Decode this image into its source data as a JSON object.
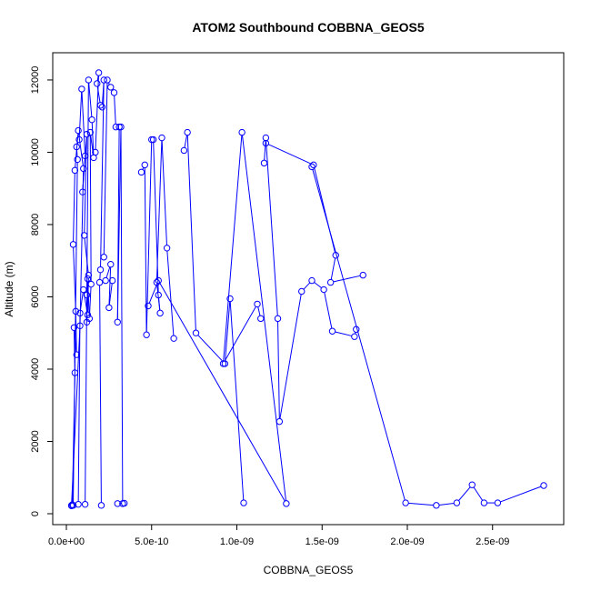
{
  "chart_data": {
    "type": "line",
    "title": "ATOM2 Southbound COBBNA_GEOS5",
    "xlabel": "COBBNA_GEOS5",
    "ylabel": "Altitude (m)",
    "xlim": [
      0,
      2.8e-09
    ],
    "ylim": [
      0,
      12200
    ],
    "x_ticks": [
      0,
      5e-10,
      1e-09,
      1.5e-09,
      2e-09,
      2.5e-09
    ],
    "x_tick_labels": [
      "0.0e+00",
      "5.0e-10",
      "1.0e-09",
      "1.5e-09",
      "2.0e-09",
      "2.5e-09"
    ],
    "y_ticks": [
      0,
      2000,
      4000,
      6000,
      8000,
      10000,
      12000
    ],
    "y_tick_labels": [
      "0",
      "2000",
      "4000",
      "6000",
      "8000",
      "10000",
      "12000"
    ],
    "grid": false,
    "legend": "none",
    "series_color": "#0000ff",
    "series": [
      {
        "x": [
          3e-11,
          8e-11,
          1e-10,
          7e-11,
          5e-11,
          4e-11,
          5.5e-11,
          6e-11,
          4.5e-11,
          5e-11,
          3.5e-11,
          3e-11
        ],
        "y": [
          220,
          5200,
          9550,
          10600,
          9500,
          7450,
          5600,
          4400,
          5150,
          3900,
          250,
          230
        ]
      },
      {
        "x": [
          4e-11,
          6.5e-11,
          6e-11,
          7.5e-11,
          9e-11,
          1.1e-10,
          9.5e-11,
          1.2e-10,
          1.05e-10,
          1.3e-10,
          1.25e-10,
          1e-10,
          8e-11,
          7e-11
        ],
        "y": [
          230,
          9800,
          10150,
          10350,
          11750,
          9900,
          8900,
          10500,
          7700,
          6600,
          5500,
          6200,
          5550,
          260
        ]
      },
      {
        "x": [
          1.1e-10,
          1.2e-10,
          1.3e-10,
          1.5e-10,
          1.6e-10,
          1.4e-10,
          1.45e-10,
          1.35e-10,
          1.25e-10,
          1.2e-10
        ],
        "y": [
          260,
          6050,
          12000,
          10900,
          9850,
          10550,
          6350,
          5400,
          6500,
          5300
        ]
      },
      {
        "x": [
          1.7e-10,
          1.9e-10,
          1.8e-10,
          2e-10,
          2.1e-10,
          2.2e-10,
          2e-10,
          1.95e-10,
          2.05e-10
        ],
        "y": [
          10000,
          12200,
          11900,
          11300,
          11250,
          12000,
          6750,
          6400,
          230
        ]
      },
      {
        "x": [
          2.2e-10,
          2.4e-10,
          2.6e-10,
          2.8e-10,
          2.9e-10,
          3.1e-10,
          3e-10,
          3.2e-10,
          3.3e-10,
          3e-10,
          3.4e-10
        ],
        "y": [
          7100,
          12000,
          11800,
          11650,
          10700,
          10700,
          5300,
          10700,
          280,
          280,
          290
        ]
      },
      {
        "x": [
          2.3e-10,
          2.6e-10,
          2.5e-10,
          2.7e-10
        ],
        "y": [
          6450,
          6900,
          5700,
          6450
        ]
      },
      {
        "x": [
          4.4e-10,
          4.6e-10,
          4.7e-10,
          5e-10,
          5.1e-10,
          5.4e-10,
          5.5e-10,
          5.3e-10,
          5.6e-10,
          5.9e-10,
          6.3e-10
        ],
        "y": [
          9450,
          9650,
          4950,
          10350,
          10350,
          6050,
          5550,
          6400,
          10400,
          7350,
          4850
        ]
      },
      {
        "x": [
          6.9e-10,
          7.1e-10,
          7.6e-10,
          9.3e-10,
          9.6e-10,
          1.04e-09
        ],
        "y": [
          10050,
          10550,
          5000,
          4150,
          5950,
          300
        ]
      },
      {
        "x": [
          4.8e-10,
          5.4e-10,
          1.29e-09,
          1.03e-09,
          9.2e-10,
          1.12e-09,
          1.14e-09
        ],
        "y": [
          5750,
          6450,
          280,
          10550,
          4150,
          5800,
          5400
        ]
      },
      {
        "x": [
          1.16e-09,
          1.17e-09,
          1.24e-09,
          1.25e-09,
          1.38e-09,
          1.44e-09,
          1.51e-09,
          1.56e-09,
          1.69e-09,
          1.7e-09
        ],
        "y": [
          9700,
          10400,
          5400,
          2550,
          6150,
          6450,
          6200,
          5050,
          4900,
          5100
        ]
      },
      {
        "x": [
          1.17e-09,
          1.45e-09,
          1.58e-09,
          1.55e-09,
          1.74e-09
        ],
        "y": [
          10250,
          9650,
          7150,
          6400,
          6600
        ]
      },
      {
        "x": [
          1.44e-09,
          1.99e-09,
          2.17e-09,
          2.29e-09,
          2.38e-09,
          2.45e-09,
          2.53e-09,
          2.8e-09
        ],
        "y": [
          9600,
          300,
          230,
          300,
          800,
          300,
          300,
          780
        ]
      }
    ]
  }
}
